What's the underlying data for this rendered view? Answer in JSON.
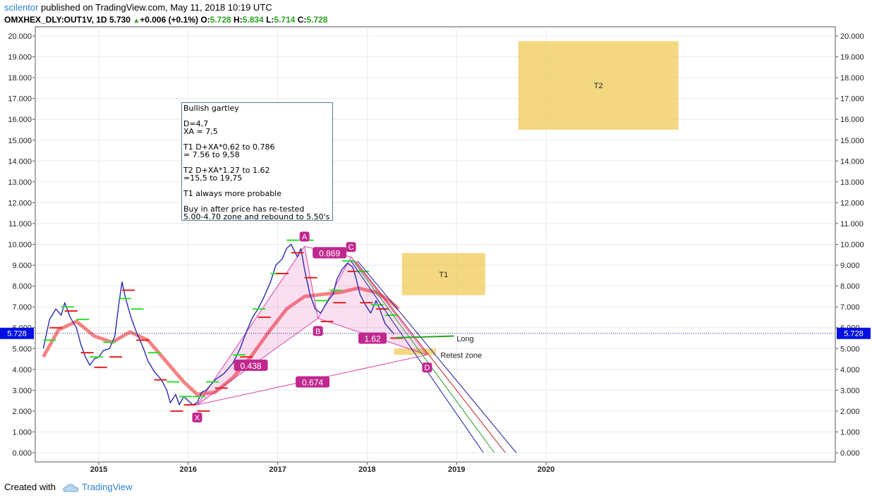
{
  "header": {
    "author": "scilentor",
    "published": "published on TradingView.com, May 11, 2018 10:19 UTC",
    "symbol": "OMXHEX_DLY:OUT1V, 1D",
    "price": "5.730",
    "change": "+0.006 (+0.1%)",
    "o_label": "O:",
    "o_value": "5.728",
    "h_label": "H:",
    "h_value": "5.834",
    "l_label": "L:",
    "l_value": "5.714",
    "c_label": "C:",
    "c_value": "5.728"
  },
  "footer": {
    "created_with": "Created with",
    "brand": "TradingView"
  },
  "annotation": {
    "lines": [
      "Bullish gartley",
      "",
      "D=4,7",
      "XA = 7,5",
      "",
      "T1 D+XA*0,62 to 0.786",
      "= 7.56 to 9,58",
      "",
      "T2 D+XA*1.27 to 1.62",
      "=15,5 to 19,75",
      "",
      "T1 always more probable",
      "",
      "Buy in after price has re-tested",
      "5.00-4.70 zone and rebound to 5.50's"
    ]
  },
  "colors": {
    "grid": "#e6ebf0",
    "axis": "#555555",
    "price_line": "#1a1aa0",
    "price_tag": "#0010e0",
    "pattern": "#d6269d",
    "zone": "#f0c850",
    "ema": "#f05a5a",
    "long_line": "#2ba31f"
  },
  "chart_data": {
    "type": "line",
    "y_axis": {
      "ylim": [
        0,
        20
      ],
      "ticks": [
        "0.000",
        "1.000",
        "2.000",
        "3.000",
        "4.000",
        "5.000",
        "6.000",
        "7.000",
        "8.000",
        "9.000",
        "10.000",
        "11.000",
        "12.000",
        "13.000",
        "14.000",
        "15.000",
        "16.000",
        "17.000",
        "18.000",
        "19.000",
        "20.000"
      ]
    },
    "x_axis": {
      "xlim": [
        2014.35,
        2021.7
      ],
      "ticks": [
        {
          "label": "2015",
          "x": 2015
        },
        {
          "label": "2016",
          "x": 2016
        },
        {
          "label": "2017",
          "x": 2017
        },
        {
          "label": "2018",
          "x": 2018
        },
        {
          "label": "2019",
          "x": 2019
        },
        {
          "label": "2020",
          "x": 2020
        }
      ]
    },
    "current_price": {
      "label": "5.728",
      "value": 5.728
    },
    "series": [
      {
        "values": [
          [
            2014.38,
            5.0
          ],
          [
            2014.45,
            6.4
          ],
          [
            2014.52,
            6.9
          ],
          [
            2014.58,
            6.6
          ],
          [
            2014.62,
            7.2
          ],
          [
            2014.68,
            6.5
          ],
          [
            2014.75,
            6.0
          ],
          [
            2014.8,
            5.2
          ],
          [
            2014.85,
            4.6
          ],
          [
            2014.9,
            4.2
          ],
          [
            2014.95,
            4.5
          ],
          [
            2015.0,
            4.6
          ],
          [
            2015.05,
            4.9
          ],
          [
            2015.12,
            5.0
          ],
          [
            2015.18,
            5.6
          ],
          [
            2015.22,
            7.0
          ],
          [
            2015.26,
            8.2
          ],
          [
            2015.3,
            7.4
          ],
          [
            2015.36,
            6.5
          ],
          [
            2015.42,
            5.8
          ],
          [
            2015.5,
            5.0
          ],
          [
            2015.55,
            4.4
          ],
          [
            2015.62,
            3.9
          ],
          [
            2015.7,
            3.5
          ],
          [
            2015.76,
            3.0
          ],
          [
            2015.8,
            2.4
          ],
          [
            2015.86,
            2.8
          ],
          [
            2015.9,
            2.3
          ],
          [
            2015.95,
            2.7
          ],
          [
            2016.0,
            2.5
          ],
          [
            2016.05,
            2.3
          ],
          [
            2016.1,
            2.4
          ],
          [
            2016.15,
            2.9
          ],
          [
            2016.2,
            3.0
          ],
          [
            2016.3,
            3.5
          ],
          [
            2016.4,
            3.8
          ],
          [
            2016.5,
            4.3
          ],
          [
            2016.58,
            5.0
          ],
          [
            2016.65,
            5.8
          ],
          [
            2016.72,
            6.5
          ],
          [
            2016.78,
            6.9
          ],
          [
            2016.85,
            7.5
          ],
          [
            2016.92,
            8.2
          ],
          [
            2016.98,
            9.0
          ],
          [
            2017.05,
            9.3
          ],
          [
            2017.1,
            9.8
          ],
          [
            2017.15,
            10.0
          ],
          [
            2017.22,
            9.4
          ],
          [
            2017.26,
            9.8
          ],
          [
            2017.3,
            8.8
          ],
          [
            2017.36,
            7.6
          ],
          [
            2017.42,
            6.9
          ],
          [
            2017.48,
            6.7
          ],
          [
            2017.52,
            7.0
          ],
          [
            2017.58,
            7.4
          ],
          [
            2017.62,
            7.6
          ],
          [
            2017.66,
            8.3
          ],
          [
            2017.72,
            8.8
          ],
          [
            2017.78,
            9.1
          ],
          [
            2017.84,
            8.9
          ],
          [
            2017.88,
            8.3
          ],
          [
            2017.92,
            7.6
          ],
          [
            2017.98,
            7.1
          ],
          [
            2018.04,
            6.7
          ],
          [
            2018.1,
            7.3
          ],
          [
            2018.14,
            6.9
          ],
          [
            2018.2,
            6.2
          ],
          [
            2018.26,
            5.9
          ],
          [
            2018.3,
            5.7
          ]
        ]
      },
      {
        "values": [
          [
            2014.38,
            4.6
          ],
          [
            2014.55,
            5.9
          ],
          [
            2014.75,
            6.3
          ],
          [
            2014.95,
            5.6
          ],
          [
            2015.15,
            5.3
          ],
          [
            2015.35,
            5.8
          ],
          [
            2015.55,
            5.4
          ],
          [
            2015.75,
            4.4
          ],
          [
            2015.95,
            3.4
          ],
          [
            2016.1,
            2.8
          ],
          [
            2016.3,
            2.9
          ],
          [
            2016.5,
            3.6
          ],
          [
            2016.7,
            4.6
          ],
          [
            2016.9,
            5.8
          ],
          [
            2017.1,
            6.9
          ],
          [
            2017.3,
            7.5
          ],
          [
            2017.5,
            7.6
          ],
          [
            2017.7,
            7.7
          ],
          [
            2017.9,
            7.9
          ],
          [
            2018.1,
            7.7
          ],
          [
            2018.25,
            7.3
          ],
          [
            2018.35,
            6.9
          ]
        ]
      }
    ],
    "pattern": {
      "name": "Bullish gartley",
      "points": [
        {
          "label": "X",
          "x": 2016.1,
          "y": 2.3
        },
        {
          "label": "A",
          "x": 2017.3,
          "y": 9.9
        },
        {
          "label": "B",
          "x": 2017.45,
          "y": 6.45
        },
        {
          "label": "C",
          "x": 2017.82,
          "y": 9.4
        },
        {
          "label": "D",
          "x": 2018.67,
          "y": 4.7
        }
      ],
      "ratios": [
        {
          "label": "0.438",
          "x": 2016.7,
          "y": 4.2
        },
        {
          "label": "0.674",
          "x": 2017.39,
          "y": 3.4
        },
        {
          "label": "0.869",
          "x": 2017.58,
          "y": 9.6
        },
        {
          "label": "1.62",
          "x": 2018.06,
          "y": 5.5
        }
      ]
    },
    "zones": [
      {
        "label": "T2",
        "x0": 2019.69,
        "x1": 2021.48,
        "y0": 15.5,
        "y1": 19.75
      },
      {
        "label": "T1",
        "x0": 2018.39,
        "x1": 2019.32,
        "y0": 7.56,
        "y1": 9.58
      },
      {
        "label": "Retest zone",
        "x0": 2018.3,
        "x1": 2018.77,
        "y0": 4.7,
        "y1": 5.0
      }
    ],
    "annotations": [
      {
        "text": "Long",
        "x": 2019.0,
        "y": 5.35
      },
      {
        "text": "Retest zone",
        "x": 2018.82,
        "y": 4.55
      }
    ]
  }
}
